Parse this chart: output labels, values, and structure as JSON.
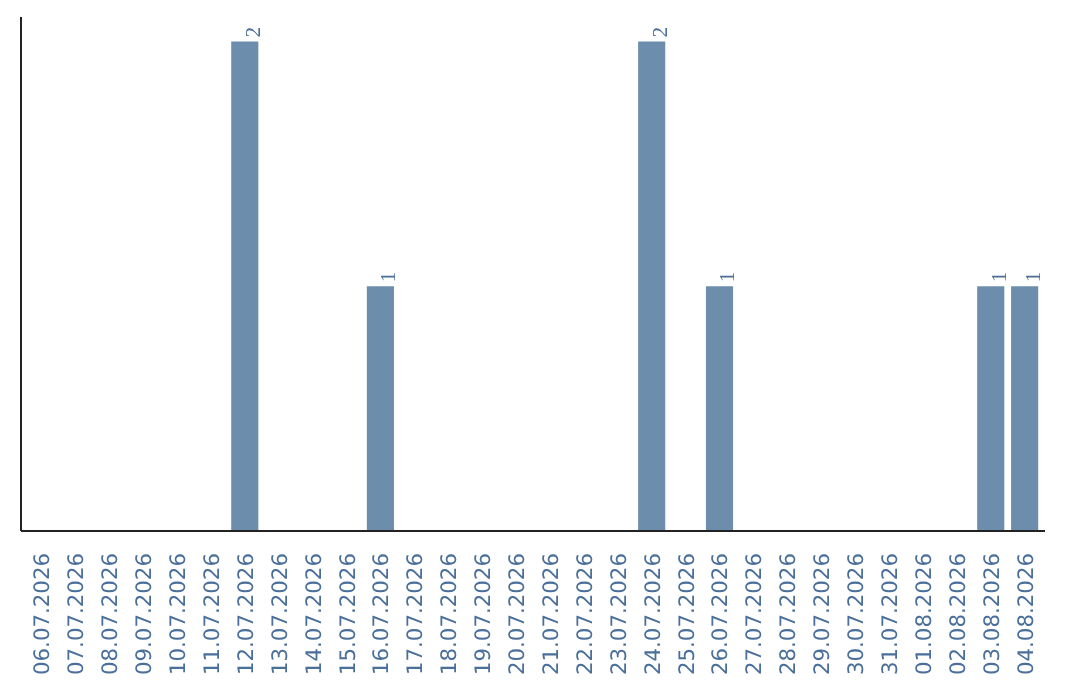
{
  "chart_data": {
    "type": "bar",
    "categories": [
      "06.07.2026",
      "07.07.2026",
      "08.07.2026",
      "09.07.2026",
      "10.07.2026",
      "11.07.2026",
      "12.07.2026",
      "13.07.2026",
      "14.07.2026",
      "15.07.2026",
      "16.07.2026",
      "17.07.2026",
      "18.07.2026",
      "19.07.2026",
      "20.07.2026",
      "21.07.2026",
      "22.07.2026",
      "23.07.2026",
      "24.07.2026",
      "25.07.2026",
      "26.07.2026",
      "27.07.2026",
      "28.07.2026",
      "29.07.2026",
      "30.07.2026",
      "31.07.2026",
      "01.08.2026",
      "02.08.2026",
      "03.08.2026",
      "04.08.2026"
    ],
    "values": [
      0,
      0,
      0,
      0,
      0,
      0,
      2,
      0,
      0,
      0,
      1,
      0,
      0,
      0,
      0,
      0,
      0,
      0,
      2,
      0,
      1,
      0,
      0,
      0,
      0,
      0,
      0,
      0,
      1,
      1
    ],
    "value_labels": [
      null,
      null,
      null,
      null,
      null,
      null,
      "2",
      null,
      null,
      null,
      "1",
      null,
      null,
      null,
      null,
      null,
      null,
      null,
      "2",
      null,
      "1",
      null,
      null,
      null,
      null,
      null,
      null,
      null,
      "1",
      "1"
    ],
    "color": "#6d8dad",
    "grid": false,
    "tick_labels": "x"
  }
}
